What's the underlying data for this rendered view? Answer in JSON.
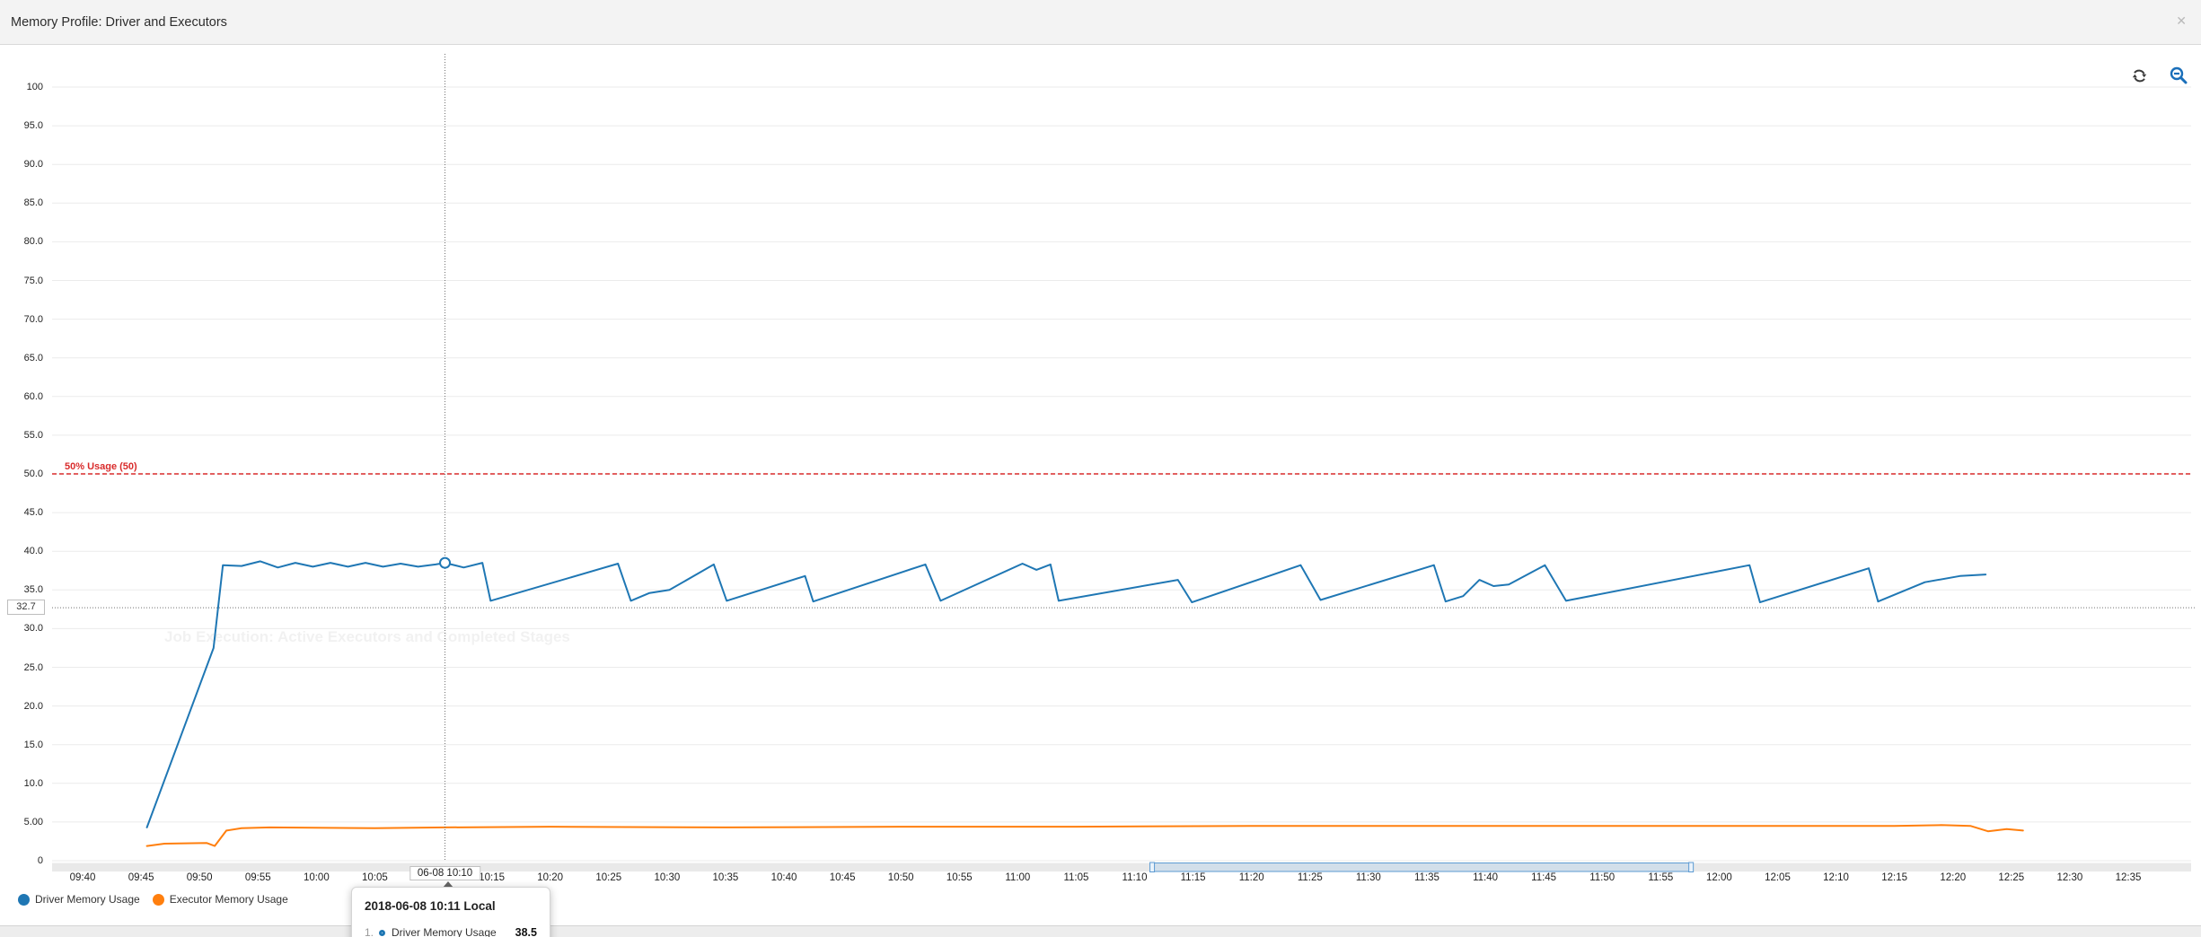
{
  "header": {
    "title": "Memory Profile: Driver and Executors",
    "close_glyph": "✕"
  },
  "watermark": {
    "text": "Job Execution: Active Executors and Completed Stages"
  },
  "legend": {
    "items": [
      {
        "label": "Driver Memory Usage",
        "color": "#1f77b4"
      },
      {
        "label": "Executor Memory Usage",
        "color": "#ff7f0e"
      }
    ]
  },
  "tooltip": {
    "title": "2018-06-08 10:11 Local",
    "rows": [
      {
        "rank": "1.",
        "series": "Driver Memory Usage",
        "value": "38.5",
        "color": "#1f77b4"
      }
    ]
  },
  "chart_data": {
    "type": "line",
    "title": "Memory Profile: Driver and Executors",
    "xlabel": "",
    "ylabel": "",
    "ylim": [
      0,
      100
    ],
    "grid": true,
    "legend_position": "bottom-left",
    "x_axis": {
      "unit": "time",
      "tick_labels": [
        "09:40",
        "09:45",
        "09:50",
        "09:55",
        "10:00",
        "10:05",
        "10:10",
        "10:15",
        "10:20",
        "10:25",
        "10:30",
        "10:35",
        "10:40",
        "10:45",
        "10:50",
        "10:55",
        "11:00",
        "11:05",
        "11:10",
        "11:15",
        "11:20",
        "11:25",
        "11:30",
        "11:35",
        "11:40",
        "11:45",
        "11:50",
        "11:55",
        "12:00",
        "12:05",
        "12:10",
        "12:15",
        "12:20",
        "12:25",
        "12:30",
        "12:35"
      ],
      "highlighted_tick_index": 6
    },
    "y_axis": {
      "tick_values": [
        0,
        5,
        10,
        15,
        20,
        25,
        30,
        35,
        40,
        45,
        50,
        55,
        60,
        65,
        70,
        75,
        80,
        85,
        90,
        95,
        100
      ],
      "tick_labels": [
        "0",
        "5.00",
        "10.0",
        "15.0",
        "20.0",
        "25.0",
        "30.0",
        "35.0",
        "40.0",
        "45.0",
        "50.0",
        "55.0",
        "60.0",
        "65.0",
        "70.0",
        "75.0",
        "80.0",
        "85.0",
        "90.0",
        "95.0",
        "100"
      ]
    },
    "threshold": {
      "label": "50% Usage (50)",
      "value": 50,
      "color": "#d92b2b",
      "style": "dashed"
    },
    "crosshair": {
      "x_label": "06-08 10:10",
      "y_label": "32.7",
      "time_min_from_0940": 31,
      "mouse_y_value": 32.7,
      "hover_point": {
        "series": "Driver Memory Usage",
        "time_min_from_0940": 31,
        "value": 38.5
      }
    },
    "navigator": {
      "selection_start_min": 91.5,
      "selection_end_min": 137.6
    },
    "series": [
      {
        "name": "Driver Memory Usage",
        "color": "#1f77b4",
        "points": [
          [
            5.5,
            4.3
          ],
          [
            11.2,
            27.5
          ],
          [
            12.0,
            38.2
          ],
          [
            13.6,
            38.1
          ],
          [
            15.2,
            38.7
          ],
          [
            16.7,
            37.9
          ],
          [
            18.2,
            38.5
          ],
          [
            19.7,
            38.0
          ],
          [
            21.2,
            38.5
          ],
          [
            22.7,
            38.0
          ],
          [
            24.2,
            38.5
          ],
          [
            25.7,
            38.0
          ],
          [
            27.2,
            38.4
          ],
          [
            28.7,
            38.0
          ],
          [
            30.2,
            38.3
          ],
          [
            31.0,
            38.5
          ],
          [
            32.6,
            37.9
          ],
          [
            34.2,
            38.5
          ],
          [
            34.9,
            33.6
          ],
          [
            45.8,
            38.4
          ],
          [
            46.9,
            33.6
          ],
          [
            48.5,
            34.6
          ],
          [
            50.2,
            35.0
          ],
          [
            54.0,
            38.3
          ],
          [
            55.1,
            33.6
          ],
          [
            61.8,
            36.8
          ],
          [
            62.5,
            33.5
          ],
          [
            72.1,
            38.3
          ],
          [
            73.4,
            33.6
          ],
          [
            80.4,
            38.4
          ],
          [
            81.6,
            37.6
          ],
          [
            82.8,
            38.3
          ],
          [
            83.5,
            33.6
          ],
          [
            93.7,
            36.3
          ],
          [
            94.9,
            33.4
          ],
          [
            104.2,
            38.2
          ],
          [
            105.9,
            33.7
          ],
          [
            115.6,
            38.2
          ],
          [
            116.6,
            33.5
          ],
          [
            118.1,
            34.2
          ],
          [
            119.5,
            36.3
          ],
          [
            120.7,
            35.5
          ],
          [
            122.0,
            35.7
          ],
          [
            125.1,
            38.2
          ],
          [
            126.9,
            33.6
          ],
          [
            142.6,
            38.2
          ],
          [
            143.5,
            33.4
          ],
          [
            152.8,
            37.8
          ],
          [
            153.6,
            33.5
          ],
          [
            157.6,
            36.0
          ],
          [
            160.6,
            36.8
          ],
          [
            162.8,
            37.0
          ]
        ]
      },
      {
        "name": "Executor Memory Usage",
        "color": "#ff7f0e",
        "points": [
          [
            5.5,
            1.9
          ],
          [
            7.0,
            2.2
          ],
          [
            10.6,
            2.3
          ],
          [
            11.3,
            1.9
          ],
          [
            12.3,
            3.9
          ],
          [
            13.6,
            4.2
          ],
          [
            16.0,
            4.3
          ],
          [
            25.0,
            4.2
          ],
          [
            31.0,
            4.3
          ],
          [
            40.0,
            4.4
          ],
          [
            55.0,
            4.3
          ],
          [
            70.0,
            4.4
          ],
          [
            85.0,
            4.4
          ],
          [
            100.0,
            4.5
          ],
          [
            115.0,
            4.5
          ],
          [
            130.0,
            4.5
          ],
          [
            145.0,
            4.5
          ],
          [
            155.0,
            4.5
          ],
          [
            159.0,
            4.6
          ],
          [
            161.5,
            4.5
          ],
          [
            163.0,
            3.8
          ],
          [
            164.6,
            4.1
          ],
          [
            166.0,
            3.9
          ]
        ]
      }
    ]
  }
}
